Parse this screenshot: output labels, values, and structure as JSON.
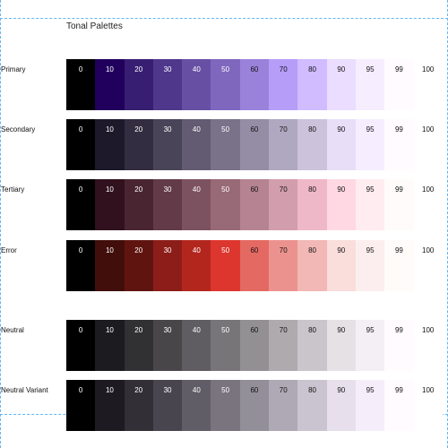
{
  "title": "Tonal Palettes",
  "palettes": [
    {
      "label": "Primary",
      "tones": [
        "0",
        "10",
        "20",
        "30",
        "40",
        "50",
        "60",
        "70",
        "80",
        "90",
        "95",
        "99",
        "100"
      ],
      "colors": [
        "#000000",
        "#21005d",
        "#381e72",
        "#4f378b",
        "#6750a4",
        "#7f67be",
        "#9a82db",
        "#b69df8",
        "#d0bcff",
        "#eaddff",
        "#f6edff",
        "#fffbfe",
        "#ffffff"
      ]
    },
    {
      "label": "Secondary",
      "tones": [
        "0",
        "10",
        "20",
        "30",
        "40",
        "50",
        "60",
        "70",
        "80",
        "90",
        "95",
        "99",
        "100"
      ],
      "colors": [
        "#000000",
        "#1d192b",
        "#332d41",
        "#4a4458",
        "#625b71",
        "#7a7289",
        "#958da5",
        "#b0a7c0",
        "#ccc2dc",
        "#e8def8",
        "#f6edff",
        "#fffbfe",
        "#ffffff"
      ]
    },
    {
      "label": "Tertiary",
      "tones": [
        "0",
        "10",
        "20",
        "30",
        "40",
        "50",
        "60",
        "70",
        "80",
        "90",
        "95",
        "99",
        "100"
      ],
      "colors": [
        "#000000",
        "#31111d",
        "#492532",
        "#633b48",
        "#7d5260",
        "#986977",
        "#b58392",
        "#d29dac",
        "#efb8c8",
        "#ffd8e4",
        "#ffecf1",
        "#fffbfa",
        "#ffffff"
      ]
    },
    {
      "label": "Error",
      "tones": [
        "0",
        "10",
        "20",
        "30",
        "40",
        "50",
        "60",
        "70",
        "80",
        "90",
        "95",
        "99",
        "100"
      ],
      "colors": [
        "#000000",
        "#410e0b",
        "#601410",
        "#8c1d18",
        "#b3261e",
        "#dc362e",
        "#e46962",
        "#ec928e",
        "#f2b8b5",
        "#f9dedc",
        "#fceeee",
        "#fffbf9",
        "#ffffff"
      ]
    },
    {
      "label": "Neutral",
      "tones": [
        "0",
        "10",
        "20",
        "30",
        "40",
        "50",
        "60",
        "70",
        "80",
        "90",
        "95",
        "99",
        "100"
      ],
      "colors": [
        "#000000",
        "#1c1b1f",
        "#313033",
        "#484649",
        "#605d62",
        "#787579",
        "#939094",
        "#aeaaae",
        "#c9c5ca",
        "#e6e1e5",
        "#f4eff4",
        "#fffbfe",
        "#ffffff"
      ]
    },
    {
      "label": "Neutral Variant",
      "tones": [
        "0",
        "10",
        "20",
        "30",
        "40",
        "50",
        "60",
        "70",
        "80",
        "90",
        "95",
        "99",
        "100"
      ],
      "colors": [
        "#000000",
        "#1d1a22",
        "#322f37",
        "#49454f",
        "#605d66",
        "#79747e",
        "#938f99",
        "#aea9b4",
        "#cac4d0",
        "#e7e0ec",
        "#f5eefa",
        "#fffbfe",
        "#ffffff"
      ]
    }
  ]
}
